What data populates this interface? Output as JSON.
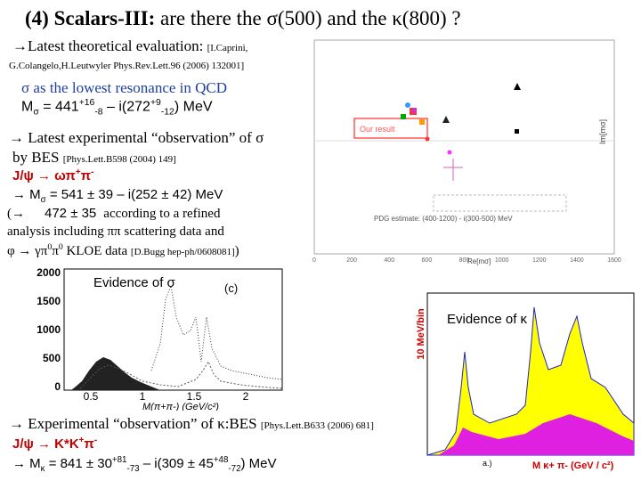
{
  "title": {
    "label": "(4) Scalars-III:",
    "text": " are there the σ(500) and the κ(800) ?"
  },
  "theory": {
    "lead": "→Latest theoretical evaluation: ",
    "ref1": "[I.Caprini,",
    "ref2": "G.Colangelo,H.Leutwyler Phys.Rev.Lett.96 (2006) 132001]",
    "note": "σ as the lowest resonance in QCD",
    "mass": [
      "M",
      "σ",
      " = 441",
      "+16",
      "-8",
      " – i(272",
      "+9",
      "-12",
      ") MeV"
    ]
  },
  "experiment_sigma": {
    "lead": "→ Latest experimental “observation” of σ",
    "by": "by BES ",
    "ref": "[Phys.Lett.B598 (2004) 149]",
    "channel": [
      "J/ψ → ωπ",
      "+",
      "π",
      "-"
    ],
    "mass": [
      "→ M",
      "σ",
      " = 541 ± 39 – i(252 ± 42) MeV"
    ],
    "refined": [
      "(→",
      "472 ± 35",
      "according to a refined"
    ],
    "analysis": "analysis including ππ scattering data and",
    "kloe": [
      "φ → γπ",
      "0",
      "π",
      "0",
      " KLOE data ",
      "[D.Bugg hep-ph/0608081]",
      ")"
    ]
  },
  "experiment_kappa": {
    "lead": "→ Experimental “observation” of κ:BES ",
    "ref": "[Phys.Lett.B633 (2006) 681]",
    "channel": [
      "J/ψ → K*K",
      "+",
      "π",
      "-"
    ],
    "mass": [
      "→ M",
      "κ",
      " = 841 ± 30",
      "+81",
      "-73",
      " – i(309 ± 45",
      "+48",
      "-72",
      ") MeV"
    ]
  },
  "pole_plot": {
    "legend": "Our result",
    "pdg": "PDG estimate: (400-1200) - i(300-500) MeV",
    "ylabel": "Im[mσ]",
    "xlabel": "Re[mσ]",
    "xticks": [
      "0",
      "200",
      "400",
      "600",
      "800",
      "1000",
      "1200",
      "1400",
      "1600"
    ]
  },
  "sigma_hist": {
    "title": "Evidence of σ",
    "panel": "(c)",
    "yticks": [
      "2000",
      "1500",
      "1000",
      "500",
      "0"
    ],
    "xticks": [
      "0.5",
      "1",
      "1.5",
      "2"
    ],
    "xlabel": "M(π+π-) (GeV/c²)"
  },
  "kappa_hist": {
    "ylabel": "10 MeV/bin",
    "title": "Evidence of κ",
    "panel": "a.)",
    "xlabel": "M κ+ π- (GeV / c²)"
  }
}
